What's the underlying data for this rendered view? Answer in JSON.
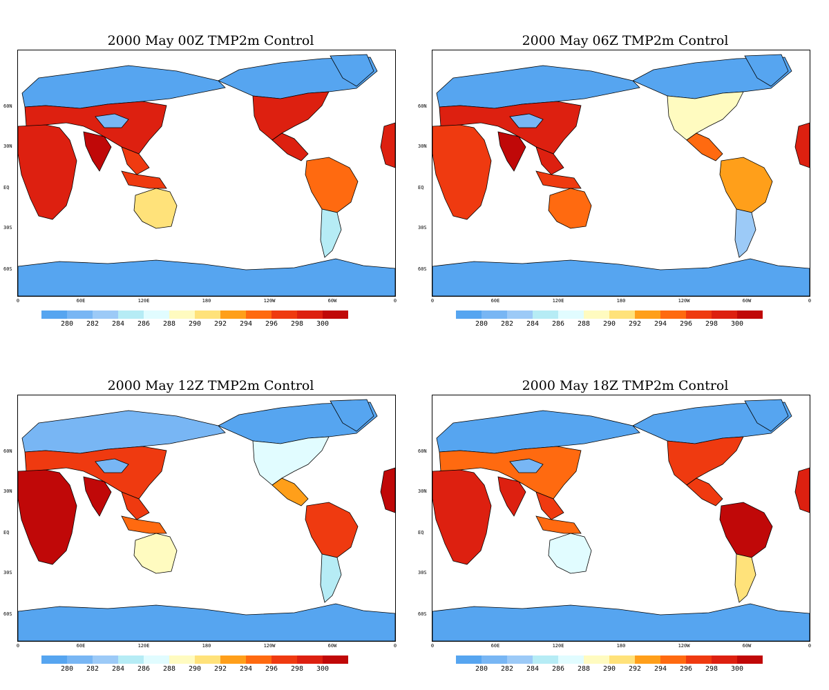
{
  "panels": [
    {
      "id": "p00",
      "title": "2000 May  00Z TMP2m Control",
      "hour": "00Z"
    },
    {
      "id": "p06",
      "title": "2000  May 06Z TMP2m Control",
      "hour": "06Z"
    },
    {
      "id": "p12",
      "title": "2000  May 12Z TMP2m Control",
      "hour": "12Z"
    },
    {
      "id": "p18",
      "title": "2000  May 18Z TMP2m Control",
      "hour": "18Z"
    }
  ],
  "lat_labels": [
    "60N",
    "30N",
    "EQ",
    "30S",
    "60S"
  ],
  "lon_labels": [
    "0",
    "60E",
    "120E",
    "180",
    "120W",
    "60W",
    "0"
  ],
  "colorbar": {
    "labels": [
      "280",
      "282",
      "284",
      "286",
      "288",
      "290",
      "292",
      "294",
      "296",
      "298",
      "300"
    ],
    "colors": [
      "#56a5f0",
      "#78b6f4",
      "#9ccaf7",
      "#b6ecf5",
      "#e1fcff",
      "#fffbc0",
      "#ffe27a",
      "#ff9f1a",
      "#ff6a10",
      "#ef3a10",
      "#dd2010",
      "#c00808"
    ]
  },
  "colors": {
    "ocean": "#ffffff",
    "cold": "#56a5f0",
    "cool": "#9ccaf7",
    "mild": "#fffbc0",
    "warm": "#ff9f1a",
    "hot": "#ef3a10",
    "hottest": "#c00808",
    "coast": "#000000"
  }
}
